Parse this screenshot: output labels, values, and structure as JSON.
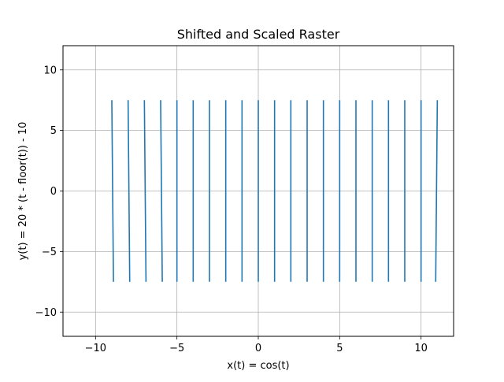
{
  "chart_data": {
    "type": "line",
    "title": "Shifted and Scaled Raster",
    "xlabel": "x(t) = cos(t)",
    "ylabel": "y(t) = 20 * (t - floor(t)) - 10",
    "xlim": [
      -12,
      12
    ],
    "ylim": [
      -12,
      12
    ],
    "xticks": [
      -10,
      -5,
      0,
      5,
      10
    ],
    "yticks": [
      -10,
      -5,
      0,
      5,
      10
    ],
    "xtick_labels": [
      "−10",
      "−5",
      "0",
      "5",
      "10"
    ],
    "ytick_labels": [
      "−10",
      "−5",
      "0",
      "5",
      "10"
    ],
    "grid": true,
    "line_color": "#1f77b4",
    "series": [
      {
        "segments": [
          {
            "x": [
              -9,
              -8.9
            ],
            "y": [
              7.5,
              -7.5
            ]
          },
          {
            "x": [
              -8,
              -7.9
            ],
            "y": [
              7.5,
              -7.5
            ]
          },
          {
            "x": [
              -7,
              -6.9
            ],
            "y": [
              7.5,
              -7.5
            ]
          },
          {
            "x": [
              -6,
              -5.9
            ],
            "y": [
              7.5,
              -7.5
            ]
          },
          {
            "x": [
              -5,
              -5
            ],
            "y": [
              7.5,
              -7.5
            ]
          },
          {
            "x": [
              -4,
              -4
            ],
            "y": [
              7.5,
              -7.5
            ]
          },
          {
            "x": [
              -3,
              -3
            ],
            "y": [
              7.5,
              -7.5
            ]
          },
          {
            "x": [
              -2,
              -2
            ],
            "y": [
              7.5,
              -7.5
            ]
          },
          {
            "x": [
              -1,
              -1
            ],
            "y": [
              7.5,
              -7.5
            ]
          },
          {
            "x": [
              0,
              0
            ],
            "y": [
              7.5,
              -7.5
            ]
          },
          {
            "x": [
              1,
              1
            ],
            "y": [
              7.5,
              -7.5
            ]
          },
          {
            "x": [
              2,
              2
            ],
            "y": [
              7.5,
              -7.5
            ]
          },
          {
            "x": [
              3,
              3
            ],
            "y": [
              7.5,
              -7.5
            ]
          },
          {
            "x": [
              4,
              4
            ],
            "y": [
              7.5,
              -7.5
            ]
          },
          {
            "x": [
              5,
              5
            ],
            "y": [
              7.5,
              -7.5
            ]
          },
          {
            "x": [
              6,
              6
            ],
            "y": [
              7.5,
              -7.5
            ]
          },
          {
            "x": [
              7,
              7
            ],
            "y": [
              7.5,
              -7.5
            ]
          },
          {
            "x": [
              8,
              8
            ],
            "y": [
              7.5,
              -7.5
            ]
          },
          {
            "x": [
              9,
              9
            ],
            "y": [
              7.5,
              -7.5
            ]
          },
          {
            "x": [
              10,
              10
            ],
            "y": [
              7.5,
              -7.5
            ]
          },
          {
            "x": [
              11,
              10.9
            ],
            "y": [
              7.5,
              -7.5
            ]
          }
        ]
      }
    ]
  }
}
